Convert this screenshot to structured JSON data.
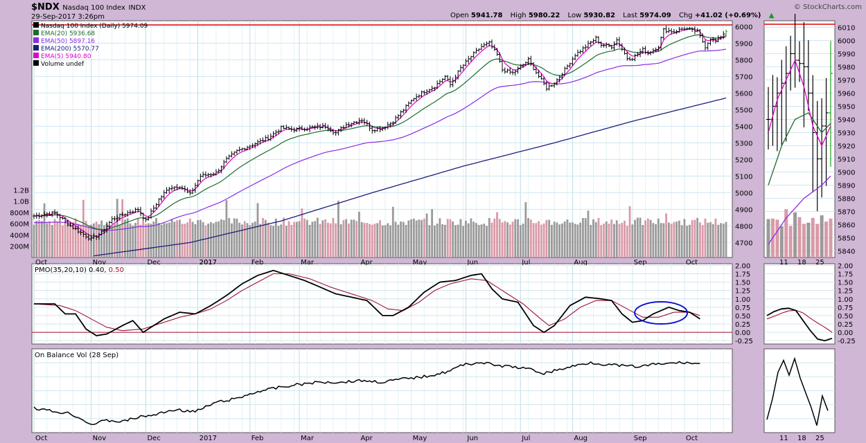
{
  "header": {
    "symbol": "$NDX",
    "name": "Nasdaq 100 Index",
    "exchange": "INDX",
    "date": "29-Sep-2017 3:26pm",
    "brand": "© StockCharts.com",
    "open_label": "Open",
    "open": "5941.78",
    "high_label": "High",
    "high": "5980.22",
    "low_label": "Low",
    "low": "5930.82",
    "last_label": "Last",
    "last": "5974.09",
    "chg_label": "Chg",
    "chg": "+41.02 (+0.69%)"
  },
  "chart_data": [
    {
      "type": "ohlc",
      "panel": "price",
      "legend": [
        {
          "label": "Nasdaq 100 Index (Daily) 5974.09",
          "color": "#000000"
        },
        {
          "label": "EMA(20) 5936.68",
          "color": "#1e6b2a"
        },
        {
          "label": "EMA(50) 5897.16",
          "color": "#8a2be2"
        },
        {
          "label": "EMA(200) 5570.77",
          "color": "#1c1c7a"
        },
        {
          "label": "EMA(5) 5940.80",
          "color": "#e000c8"
        },
        {
          "label": "Volume undef",
          "color": "#000000"
        }
      ],
      "y_ticks": [
        4700,
        4800,
        4900,
        5000,
        5100,
        5200,
        5300,
        5400,
        5500,
        5600,
        5700,
        5800,
        5900,
        6000
      ],
      "ylim": [
        4610,
        6035
      ],
      "volume_ticks": [
        "200M",
        "400M",
        "600M",
        "800M",
        "1.0B",
        "1.2B"
      ],
      "volume_values": [
        200,
        400,
        600,
        800,
        1000,
        1200
      ],
      "volume_max": 1230,
      "x_labels": [
        "Oct",
        "Nov",
        "Dec",
        "2017",
        "Feb",
        "Mar",
        "Apr",
        "May",
        "Jun",
        "Jul",
        "Aug",
        "Sep",
        "Oct"
      ],
      "x_label_index": [
        0,
        22,
        43,
        63,
        83,
        102,
        125,
        145,
        166,
        187,
        207,
        230,
        250
      ],
      "n": 252,
      "resistance": 6010,
      "close_anchors": [
        [
          0,
          4860
        ],
        [
          8,
          4880
        ],
        [
          14,
          4800
        ],
        [
          22,
          4720
        ],
        [
          26,
          4760
        ],
        [
          30,
          4840
        ],
        [
          36,
          4880
        ],
        [
          40,
          4900
        ],
        [
          43,
          4830
        ],
        [
          48,
          4960
        ],
        [
          52,
          5030
        ],
        [
          56,
          5040
        ],
        [
          60,
          4990
        ],
        [
          64,
          5100
        ],
        [
          70,
          5120
        ],
        [
          74,
          5200
        ],
        [
          78,
          5250
        ],
        [
          84,
          5290
        ],
        [
          90,
          5330
        ],
        [
          95,
          5390
        ],
        [
          100,
          5380
        ],
        [
          106,
          5390
        ],
        [
          112,
          5400
        ],
        [
          116,
          5360
        ],
        [
          120,
          5410
        ],
        [
          126,
          5440
        ],
        [
          130,
          5380
        ],
        [
          134,
          5390
        ],
        [
          138,
          5430
        ],
        [
          142,
          5500
        ],
        [
          146,
          5570
        ],
        [
          150,
          5610
        ],
        [
          154,
          5640
        ],
        [
          158,
          5700
        ],
        [
          160,
          5650
        ],
        [
          164,
          5750
        ],
        [
          168,
          5820
        ],
        [
          172,
          5880
        ],
        [
          175,
          5900
        ],
        [
          178,
          5830
        ],
        [
          180,
          5740
        ],
        [
          184,
          5720
        ],
        [
          188,
          5770
        ],
        [
          190,
          5800
        ],
        [
          194,
          5700
        ],
        [
          197,
          5630
        ],
        [
          200,
          5660
        ],
        [
          204,
          5740
        ],
        [
          208,
          5830
        ],
        [
          212,
          5880
        ],
        [
          216,
          5930
        ],
        [
          218,
          5890
        ],
        [
          222,
          5880
        ],
        [
          224,
          5920
        ],
        [
          228,
          5810
        ],
        [
          230,
          5810
        ],
        [
          234,
          5860
        ],
        [
          236,
          5840
        ],
        [
          240,
          5880
        ],
        [
          242,
          5980
        ],
        [
          246,
          5970
        ],
        [
          250,
          5990
        ],
        [
          255,
          5970
        ],
        [
          258,
          5880
        ],
        [
          260,
          5930
        ],
        [
          262,
          5910
        ],
        [
          266,
          5974
        ]
      ],
      "ema200_anchors": [
        [
          23,
          4620
        ],
        [
          60,
          4700
        ],
        [
          95,
          4830
        ],
        [
          130,
          5000
        ],
        [
          165,
          5160
        ],
        [
          200,
          5300
        ],
        [
          230,
          5430
        ],
        [
          266,
          5570
        ]
      ]
    },
    {
      "type": "line",
      "panel": "inset",
      "y_ticks": [
        5840,
        5850,
        5860,
        5870,
        5880,
        5890,
        5900,
        5910,
        5920,
        5930,
        5940,
        5950,
        5960,
        5970,
        5980,
        5990,
        6000,
        6010
      ],
      "ylim": [
        5835,
        6015
      ],
      "x_labels": [
        "11",
        "18",
        "25"
      ],
      "close_anchors": [
        [
          0,
          5940
        ],
        [
          2,
          5960
        ],
        [
          4,
          5975
        ],
        [
          5,
          5990
        ],
        [
          6,
          5985
        ],
        [
          8,
          5980
        ],
        [
          9,
          5960
        ],
        [
          10,
          5930
        ],
        [
          11,
          5910
        ],
        [
          12,
          5935
        ],
        [
          13,
          5945
        ],
        [
          14,
          5975
        ]
      ]
    },
    {
      "type": "line",
      "panel": "pmo",
      "title": "PMO(35,20,10) 0.40, 0.50",
      "pmo_value": "0.40",
      "signal_value": "0.50",
      "y_ticks": [
        -0.25,
        0.0,
        0.25,
        0.5,
        0.75,
        1.0,
        1.25,
        1.5,
        1.75,
        2.0
      ],
      "tick_labels": [
        "-0.25",
        "0.00",
        "0.25",
        "0.50",
        "0.75",
        "1.00",
        "1.25",
        "1.50",
        "1.75",
        "2.00"
      ],
      "ylim": [
        -0.35,
        2.05
      ],
      "pmo_anchors": [
        [
          0,
          0.85
        ],
        [
          8,
          0.85
        ],
        [
          12,
          0.55
        ],
        [
          16,
          0.55
        ],
        [
          20,
          0.1
        ],
        [
          24,
          -0.1
        ],
        [
          28,
          -0.05
        ],
        [
          34,
          0.2
        ],
        [
          38,
          0.35
        ],
        [
          42,
          0.0
        ],
        [
          46,
          0.2
        ],
        [
          50,
          0.4
        ],
        [
          56,
          0.6
        ],
        [
          62,
          0.55
        ],
        [
          68,
          0.8
        ],
        [
          74,
          1.1
        ],
        [
          80,
          1.45
        ],
        [
          86,
          1.7
        ],
        [
          92,
          1.85
        ],
        [
          98,
          1.7
        ],
        [
          104,
          1.55
        ],
        [
          110,
          1.35
        ],
        [
          116,
          1.15
        ],
        [
          122,
          1.05
        ],
        [
          128,
          0.95
        ],
        [
          134,
          0.5
        ],
        [
          138,
          0.5
        ],
        [
          144,
          0.75
        ],
        [
          150,
          1.2
        ],
        [
          156,
          1.5
        ],
        [
          162,
          1.55
        ],
        [
          168,
          1.7
        ],
        [
          172,
          1.75
        ],
        [
          176,
          1.3
        ],
        [
          180,
          1.0
        ],
        [
          186,
          0.9
        ],
        [
          192,
          0.2
        ],
        [
          196,
          0.0
        ],
        [
          200,
          0.2
        ],
        [
          206,
          0.8
        ],
        [
          212,
          1.05
        ],
        [
          218,
          1.0
        ],
        [
          222,
          0.95
        ],
        [
          226,
          0.55
        ],
        [
          230,
          0.3
        ],
        [
          234,
          0.35
        ],
        [
          238,
          0.55
        ],
        [
          244,
          0.75
        ],
        [
          248,
          0.65
        ],
        [
          252,
          0.6
        ],
        [
          256,
          0.4
        ]
      ],
      "signal_anchors": [
        [
          0,
          0.85
        ],
        [
          10,
          0.8
        ],
        [
          16,
          0.65
        ],
        [
          22,
          0.4
        ],
        [
          28,
          0.15
        ],
        [
          34,
          0.05
        ],
        [
          42,
          0.1
        ],
        [
          48,
          0.25
        ],
        [
          56,
          0.45
        ],
        [
          62,
          0.55
        ],
        [
          68,
          0.7
        ],
        [
          74,
          0.95
        ],
        [
          80,
          1.25
        ],
        [
          86,
          1.5
        ],
        [
          92,
          1.75
        ],
        [
          98,
          1.75
        ],
        [
          106,
          1.6
        ],
        [
          114,
          1.35
        ],
        [
          122,
          1.15
        ],
        [
          130,
          0.95
        ],
        [
          136,
          0.7
        ],
        [
          142,
          0.65
        ],
        [
          148,
          0.9
        ],
        [
          154,
          1.25
        ],
        [
          160,
          1.45
        ],
        [
          168,
          1.6
        ],
        [
          174,
          1.55
        ],
        [
          180,
          1.25
        ],
        [
          188,
          0.85
        ],
        [
          194,
          0.45
        ],
        [
          198,
          0.2
        ],
        [
          204,
          0.4
        ],
        [
          210,
          0.75
        ],
        [
          216,
          0.95
        ],
        [
          222,
          0.95
        ],
        [
          228,
          0.7
        ],
        [
          234,
          0.45
        ],
        [
          240,
          0.45
        ],
        [
          246,
          0.6
        ],
        [
          252,
          0.6
        ],
        [
          256,
          0.5
        ]
      ],
      "inset_pmo": [
        [
          0,
          0.5
        ],
        [
          2,
          0.62
        ],
        [
          4,
          0.7
        ],
        [
          6,
          0.72
        ],
        [
          8,
          0.65
        ],
        [
          10,
          0.35
        ],
        [
          12,
          0.05
        ],
        [
          14,
          -0.2
        ],
        [
          16,
          -0.25
        ],
        [
          18,
          -0.18
        ]
      ],
      "inset_signal": [
        [
          0,
          0.4
        ],
        [
          2,
          0.48
        ],
        [
          4,
          0.57
        ],
        [
          6,
          0.64
        ],
        [
          8,
          0.66
        ],
        [
          10,
          0.58
        ],
        [
          12,
          0.42
        ],
        [
          14,
          0.28
        ],
        [
          16,
          0.15
        ],
        [
          18,
          0.0
        ]
      ]
    },
    {
      "type": "line",
      "panel": "obv",
      "title": "On Balance Vol (28 Sep)",
      "obv_anchors": [
        [
          0,
          0.35
        ],
        [
          8,
          0.28
        ],
        [
          14,
          0.25
        ],
        [
          22,
          0.05
        ],
        [
          28,
          0.12
        ],
        [
          34,
          0.1
        ],
        [
          40,
          0.18
        ],
        [
          46,
          0.22
        ],
        [
          54,
          0.32
        ],
        [
          62,
          0.28
        ],
        [
          70,
          0.45
        ],
        [
          78,
          0.52
        ],
        [
          86,
          0.65
        ],
        [
          94,
          0.72
        ],
        [
          102,
          0.78
        ],
        [
          110,
          0.82
        ],
        [
          118,
          0.82
        ],
        [
          126,
          0.85
        ],
        [
          134,
          0.82
        ],
        [
          142,
          0.88
        ],
        [
          150,
          0.92
        ],
        [
          158,
          1.0
        ],
        [
          166,
          1.15
        ],
        [
          172,
          1.18
        ],
        [
          178,
          1.12
        ],
        [
          184,
          1.1
        ],
        [
          190,
          1.06
        ],
        [
          196,
          0.98
        ],
        [
          202,
          1.05
        ],
        [
          208,
          1.12
        ],
        [
          214,
          1.18
        ],
        [
          220,
          1.14
        ],
        [
          226,
          1.12
        ],
        [
          232,
          1.1
        ],
        [
          238,
          1.14
        ],
        [
          244,
          1.16
        ],
        [
          250,
          1.18
        ],
        [
          256,
          1.15
        ]
      ],
      "inset_obv": [
        [
          0,
          0.15
        ],
        [
          2,
          0.5
        ],
        [
          4,
          0.95
        ],
        [
          6,
          1.15
        ],
        [
          8,
          0.9
        ],
        [
          10,
          1.18
        ],
        [
          12,
          0.85
        ],
        [
          14,
          0.6
        ],
        [
          16,
          0.35
        ],
        [
          18,
          0.05
        ],
        [
          20,
          0.55
        ],
        [
          22,
          0.3
        ]
      ]
    }
  ],
  "inset_x_labels": [
    "11",
    "18",
    "25"
  ]
}
